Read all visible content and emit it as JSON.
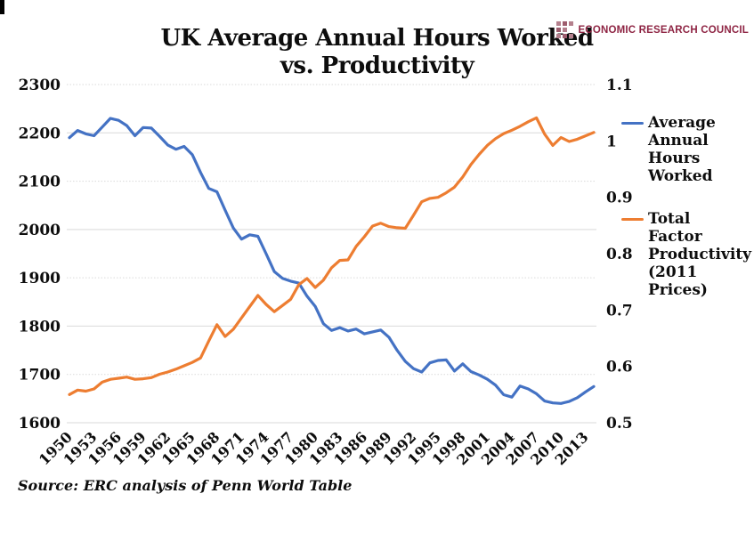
{
  "header": {
    "title_line1": "UK Average Annual Hours Worked",
    "title_line2": "vs. Productivity",
    "logo_text": "ECONOMIC RESEARCH COUNCIL"
  },
  "source": "Source: ERC analysis of Penn World Table",
  "colors": {
    "hours_line": "#4472C4",
    "tfp_line": "#ED7D31",
    "gridline": "#D9D9D9",
    "axis_text": "#0d0d0d",
    "logo_text": "#8E2443",
    "logo_square_dark": "#9E5D6E",
    "logo_square_light": "#B4808D"
  },
  "legend": {
    "position": "right",
    "items": [
      {
        "label": "Average Annual Hours Worked",
        "lines": [
          "Average",
          "Annual",
          "Hours",
          "Worked"
        ],
        "color": "#4472C4"
      },
      {
        "label": "Total Factor Productivity (2011 Prices)",
        "lines": [
          "Total Factor",
          "Productivity",
          "(2011",
          "Prices)"
        ],
        "color": "#ED7D31"
      }
    ]
  },
  "chart_data": {
    "type": "line",
    "title": "UK Average Annual Hours Worked vs. Productivity",
    "x_start": 1950,
    "x_end": 2014,
    "x_tick_labels": [
      "1950",
      "1953",
      "1956",
      "1959",
      "1962",
      "1965",
      "1968",
      "1971",
      "1974",
      "1977",
      "1980",
      "1983",
      "1986",
      "1989",
      "1992",
      "1995",
      "1998",
      "2001",
      "2004",
      "2007",
      "2010",
      "2013"
    ],
    "left_axis": {
      "range": [
        1600,
        2300
      ],
      "ticks": [
        "2300",
        "2200",
        "2100",
        "2000",
        "1900",
        "1800",
        "1700",
        "1600"
      ],
      "tick_values": [
        2300,
        2200,
        2100,
        2000,
        1900,
        1800,
        1700,
        1600
      ],
      "series": "Average Annual Hours Worked"
    },
    "right_axis": {
      "range": [
        0.5,
        1.1
      ],
      "ticks": [
        "1.1",
        "1",
        "0.9",
        "0.8",
        "0.7",
        "0.6",
        "0.5"
      ],
      "tick_values": [
        1.1,
        1.0,
        0.9,
        0.8,
        0.7,
        0.6,
        0.5
      ],
      "series": "Total Factor Productivity (2011 Prices)"
    },
    "grid": "horizontal-only",
    "legend_position": "right",
    "series": [
      {
        "name": "Average Annual Hours Worked",
        "axis": "left",
        "color": "#4472C4",
        "values": [
          2190,
          2205,
          2198,
          2194,
          2212,
          2230,
          2226,
          2215,
          2194,
          2211,
          2210,
          2193,
          2175,
          2166,
          2172,
          2155,
          2118,
          2085,
          2078,
          2040,
          2003,
          1980,
          1989,
          1986,
          1950,
          1913,
          1899,
          1893,
          1889,
          1862,
          1841,
          1805,
          1791,
          1797,
          1790,
          1794,
          1784,
          1788,
          1792,
          1777,
          1750,
          1727,
          1712,
          1705,
          1724,
          1729,
          1730,
          1707,
          1722,
          1706,
          1699,
          1690,
          1678,
          1658,
          1653,
          1676,
          1670,
          1660,
          1645,
          1641,
          1640,
          1644,
          1652,
          1664,
          1675
        ]
      },
      {
        "name": "Total Factor Productivity (2011 Prices)",
        "axis": "right",
        "color": "#ED7D31",
        "values": [
          0.55,
          0.558,
          0.556,
          0.56,
          0.572,
          0.577,
          0.579,
          0.581,
          0.577,
          0.578,
          0.58,
          0.586,
          0.59,
          0.595,
          0.601,
          0.607,
          0.615,
          0.645,
          0.674,
          0.653,
          0.666,
          0.686,
          0.706,
          0.726,
          0.71,
          0.697,
          0.708,
          0.719,
          0.745,
          0.756,
          0.74,
          0.753,
          0.775,
          0.788,
          0.789,
          0.813,
          0.83,
          0.849,
          0.854,
          0.848,
          0.846,
          0.845,
          0.868,
          0.892,
          0.898,
          0.9,
          0.908,
          0.918,
          0.936,
          0.958,
          0.976,
          0.992,
          1.004,
          1.013,
          1.019,
          1.026,
          1.034,
          1.041,
          1.012,
          0.992,
          1.006,
          0.999,
          1.003,
          1.009,
          1.015
        ]
      }
    ]
  }
}
